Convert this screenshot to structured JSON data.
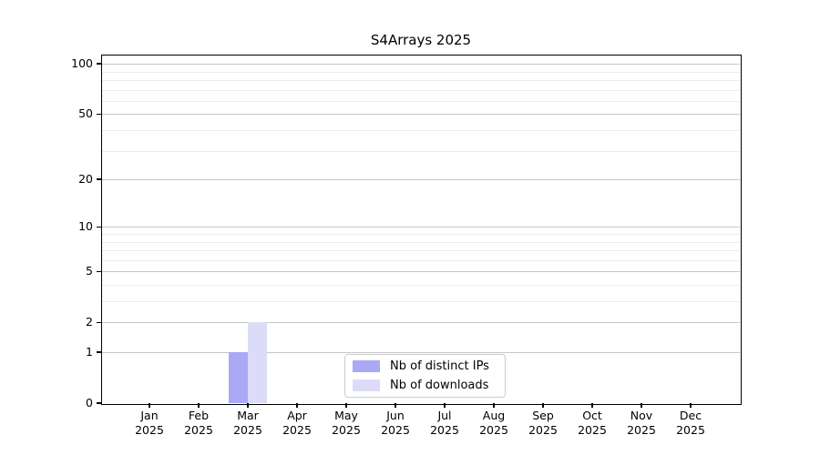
{
  "chart_data": {
    "type": "bar",
    "title": "S4Arrays 2025",
    "categories": [
      "Jan",
      "Feb",
      "Mar",
      "Apr",
      "May",
      "Jun",
      "Jul",
      "Aug",
      "Sep",
      "Oct",
      "Nov",
      "Dec"
    ],
    "category_years": [
      "2025",
      "2025",
      "2025",
      "2025",
      "2025",
      "2025",
      "2025",
      "2025",
      "2025",
      "2025",
      "2025",
      "2025"
    ],
    "series": [
      {
        "name": "Nb of distinct IPs",
        "color": "#a9a9f5",
        "values": [
          0,
          0,
          1,
          0,
          0,
          0,
          0,
          0,
          0,
          0,
          0,
          0
        ]
      },
      {
        "name": "Nb of downloads",
        "color": "#dcdcf8",
        "values": [
          0,
          0,
          2,
          0,
          0,
          0,
          0,
          0,
          0,
          0,
          0,
          0
        ]
      }
    ],
    "xlabel": "",
    "ylabel": "",
    "yscale": "log1p",
    "ylim": [
      0,
      112
    ],
    "yticks": [
      0,
      1,
      2,
      5,
      10,
      20,
      50,
      100
    ],
    "minor_yticks": [
      3,
      4,
      6,
      7,
      8,
      9,
      30,
      40,
      60,
      70,
      80,
      90
    ],
    "grid": "horizontal",
    "legend_position": "lower center"
  },
  "colors": {
    "background": "#ffffff",
    "axis": "#000000",
    "major_grid": "#c6c6c6",
    "minor_grid": "#ebebeb",
    "legend_border": "#cccccc",
    "bar_distinct_ips": "#a9a9f5",
    "bar_downloads": "#dcdcf8"
  }
}
